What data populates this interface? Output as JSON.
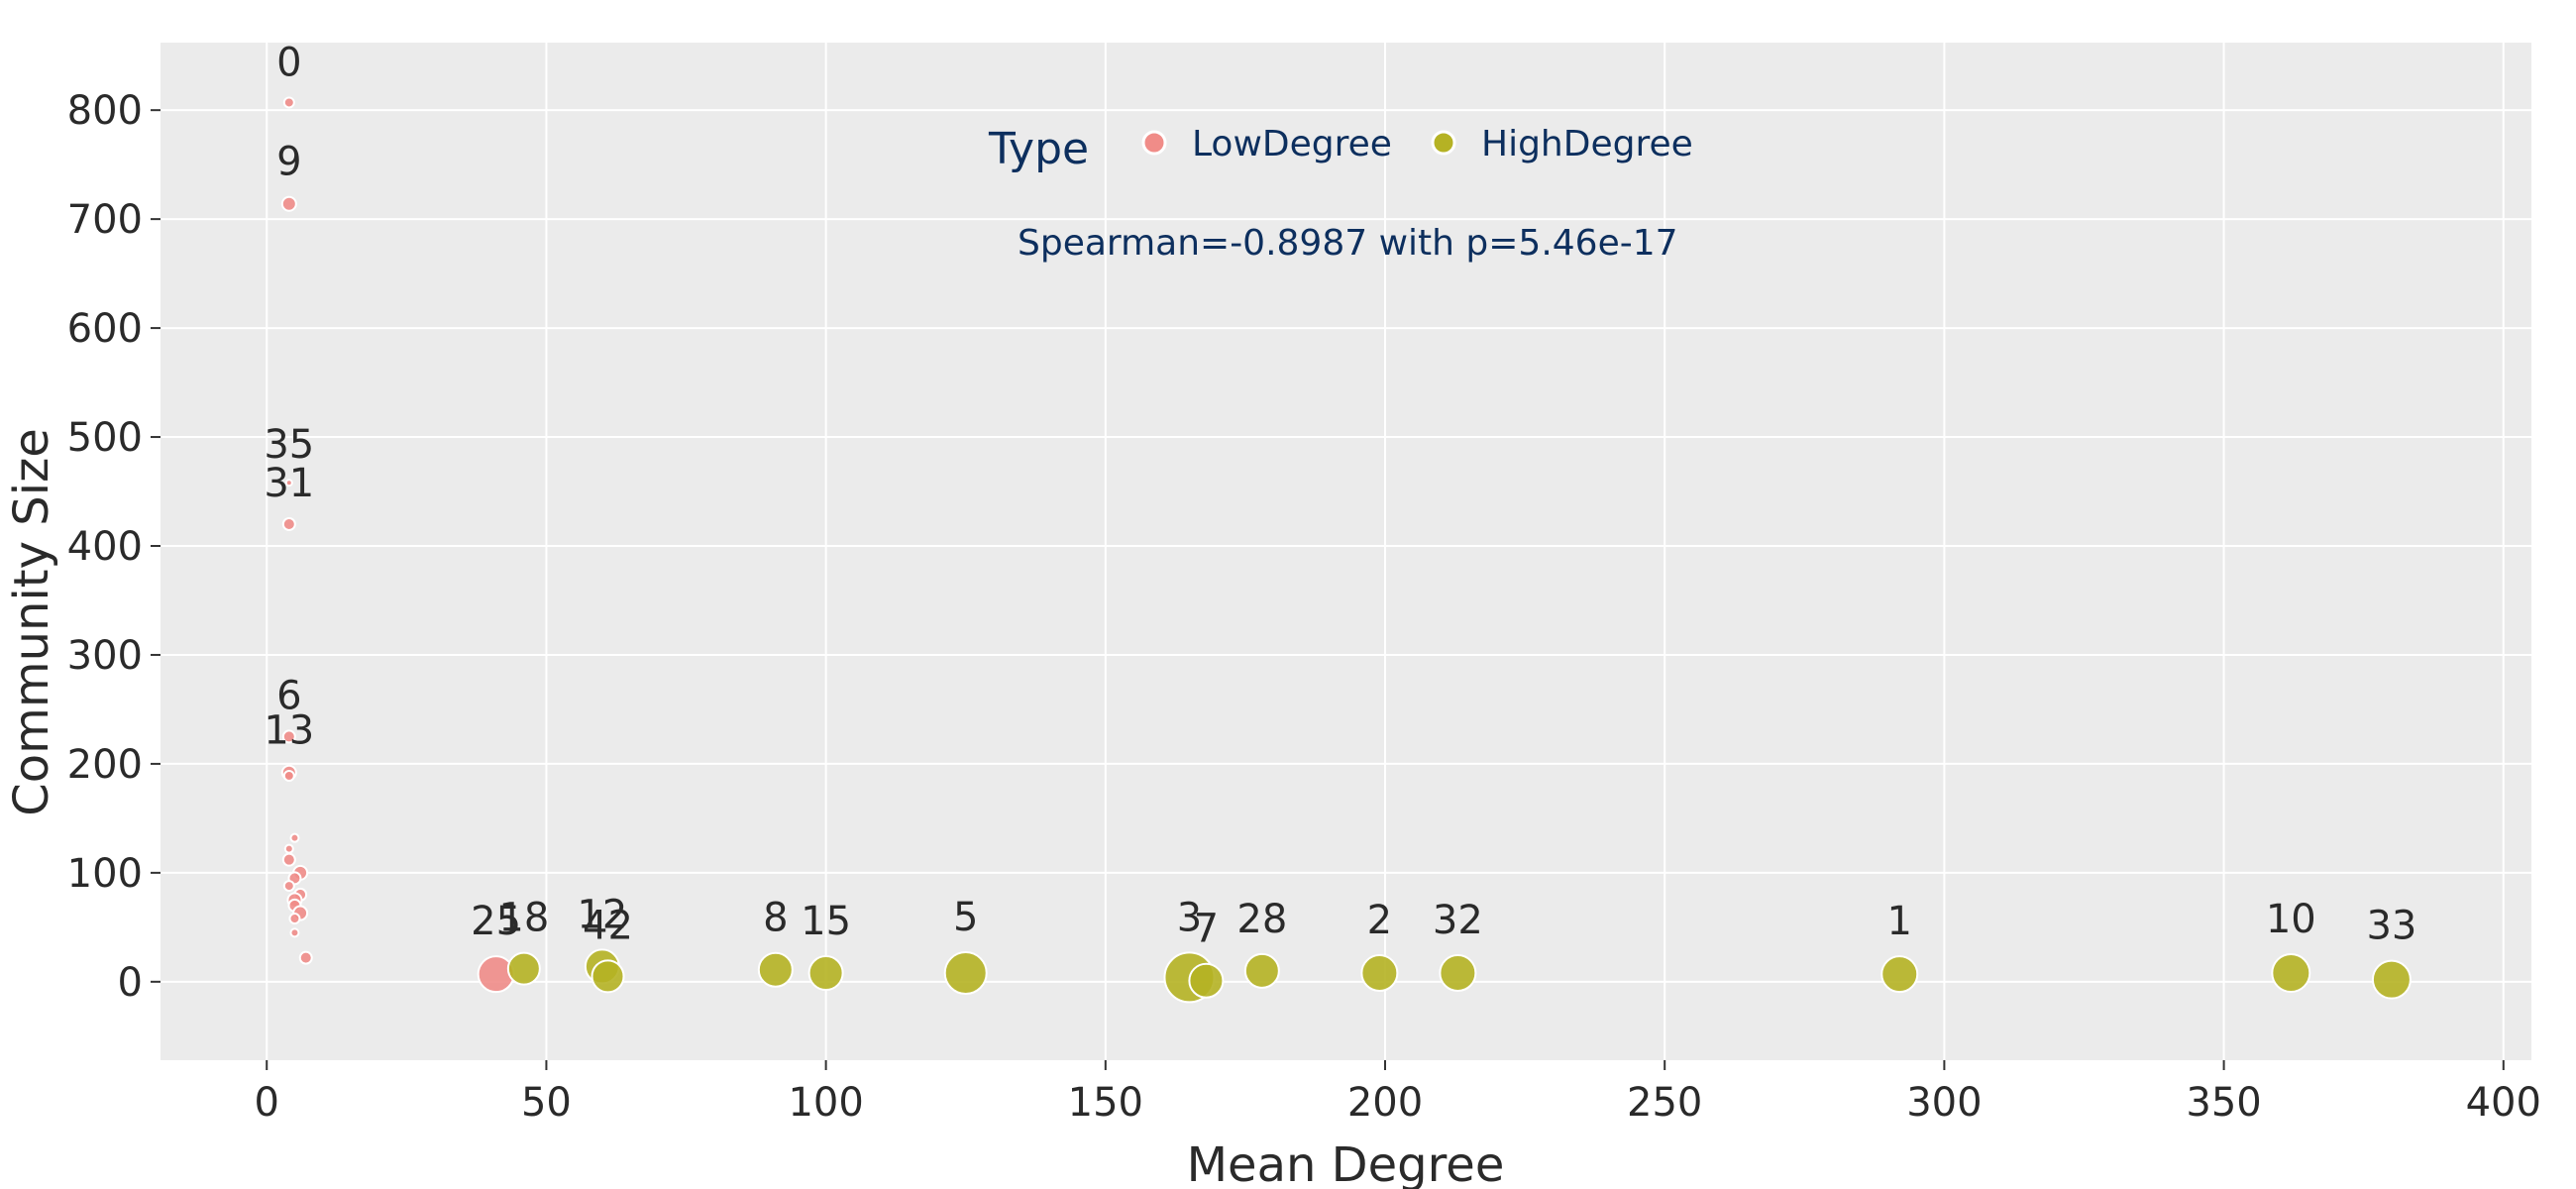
{
  "chart_data": {
    "type": "scatter",
    "title": "",
    "xlabel": "Mean Degree",
    "ylabel": "Community Size",
    "xlim": [
      -19,
      405
    ],
    "ylim": [
      -72,
      862
    ],
    "xticks": [
      0,
      50,
      100,
      150,
      200,
      250,
      300,
      350,
      400
    ],
    "yticks": [
      0,
      100,
      200,
      300,
      400,
      500,
      600,
      700,
      800
    ],
    "grid": true,
    "legend": {
      "title": "Type",
      "placement": "top-center",
      "entries": [
        {
          "label": "LowDegree",
          "color": "#f08c88"
        },
        {
          "label": "HighDegree",
          "color": "#b5b224"
        }
      ]
    },
    "annotation": "Spearman=-0.8987 with p=5.46e-17",
    "colors": {
      "LowDegree": "#f08c88",
      "HighDegree": "#b5b224",
      "plot_background": "#ebebeb",
      "grid": "#ffffff"
    },
    "series": [
      {
        "name": "LowDegree",
        "points": [
          {
            "label": "0",
            "x": 4,
            "y": 807,
            "size": 5
          },
          {
            "label": "9",
            "x": 4,
            "y": 714,
            "size": 7
          },
          {
            "label": "35",
            "x": 4,
            "y": 458,
            "size": 3
          },
          {
            "label": "31",
            "x": 4,
            "y": 420,
            "size": 6
          },
          {
            "label": "6",
            "x": 4,
            "y": 225,
            "size": 6
          },
          {
            "label": "13",
            "x": 4,
            "y": 192,
            "size": 7
          },
          {
            "label": "",
            "x": 4,
            "y": 189,
            "size": 5
          },
          {
            "label": "",
            "x": 5,
            "y": 132,
            "size": 4
          },
          {
            "label": "",
            "x": 4,
            "y": 122,
            "size": 4
          },
          {
            "label": "",
            "x": 4,
            "y": 112,
            "size": 6
          },
          {
            "label": "",
            "x": 6,
            "y": 100,
            "size": 7
          },
          {
            "label": "",
            "x": 5,
            "y": 95,
            "size": 6
          },
          {
            "label": "",
            "x": 4,
            "y": 88,
            "size": 5
          },
          {
            "label": "",
            "x": 6,
            "y": 80,
            "size": 6
          },
          {
            "label": "",
            "x": 5,
            "y": 75,
            "size": 7
          },
          {
            "label": "",
            "x": 5,
            "y": 70,
            "size": 6
          },
          {
            "label": "",
            "x": 6,
            "y": 63,
            "size": 7
          },
          {
            "label": "",
            "x": 5,
            "y": 58,
            "size": 5
          },
          {
            "label": "",
            "x": 5,
            "y": 45,
            "size": 4
          },
          {
            "label": "",
            "x": 7,
            "y": 22,
            "size": 6
          },
          {
            "label": "25",
            "x": 41,
            "y": 7,
            "size": 18
          }
        ]
      },
      {
        "name": "HighDegree",
        "points": [
          {
            "label": "18",
            "x": 46,
            "y": 12,
            "size": 16
          },
          {
            "label": "12",
            "x": 60,
            "y": 14,
            "size": 17
          },
          {
            "label": "42",
            "x": 61,
            "y": 5,
            "size": 16
          },
          {
            "label": "8",
            "x": 91,
            "y": 11,
            "size": 17
          },
          {
            "label": "15",
            "x": 100,
            "y": 8,
            "size": 17
          },
          {
            "label": "5",
            "x": 125,
            "y": 8,
            "size": 21
          },
          {
            "label": "3",
            "x": 165,
            "y": 4,
            "size": 25
          },
          {
            "label": "7",
            "x": 168,
            "y": 1,
            "size": 17
          },
          {
            "label": "28",
            "x": 178,
            "y": 10,
            "size": 17
          },
          {
            "label": "2",
            "x": 199,
            "y": 8,
            "size": 18
          },
          {
            "label": "32",
            "x": 213,
            "y": 8,
            "size": 18
          },
          {
            "label": "1",
            "x": 292,
            "y": 7,
            "size": 18
          },
          {
            "label": "10",
            "x": 362,
            "y": 8,
            "size": 19
          },
          {
            "label": "33",
            "x": 380,
            "y": 2,
            "size": 19
          }
        ]
      }
    ]
  }
}
